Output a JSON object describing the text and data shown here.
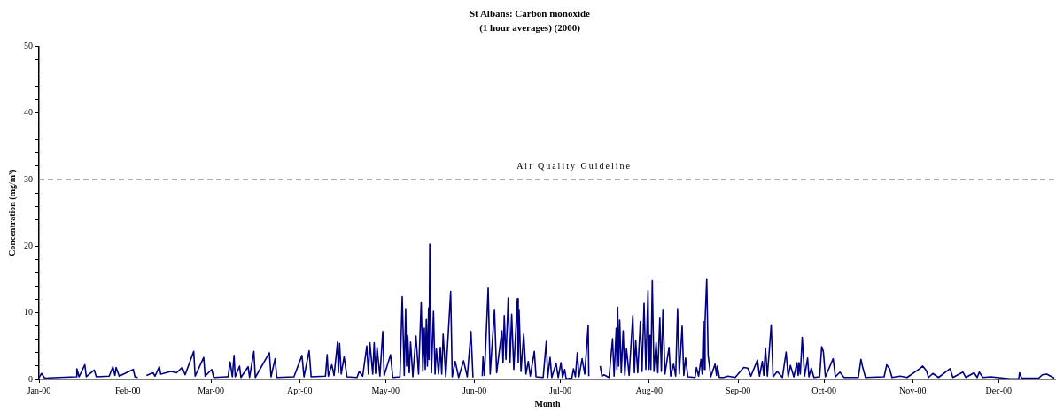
{
  "chart_data": {
    "type": "line",
    "title": "St Albans: Carbon monoxide",
    "subtitle": "(1 hour averages) (2000)",
    "xlabel": "Month",
    "ylabel": "Concentration (mg/m³)",
    "x": [
      "2000-01-01T00:00",
      "2000-01-01T22:00",
      "2000-01-03T00:00",
      "2000-01-08T00:00",
      "2000-01-14T00:00",
      "2000-01-14T05:00",
      "2000-01-15T00:00",
      "2000-01-17T00:00",
      "2000-01-17T12:00",
      "2000-01-20T07:00",
      "2000-01-21T00:00",
      "2000-01-25T12:00",
      "2000-01-26T19:00",
      "2000-01-27T12:00",
      "2000-01-27T22:00",
      "2000-01-29T00:00",
      "2000-02-02T22:00",
      "2000-02-03T12:00",
      "2000-02-04T12:00",
      "2000-02-05T12:00",
      "2000-02-07T12:00",
      "2000-02-09T19:00",
      "2000-02-10T12:00",
      "2000-02-12T00:00",
      "2000-02-12T12:00",
      "2000-02-16T00:00",
      "2000-02-18T00:00",
      "2000-02-20T00:00",
      "2000-02-21T00:00",
      "2000-02-24T00:00",
      "2000-02-24T12:00",
      "2000-02-27T12:00",
      "2000-02-28T00:00",
      "2000-03-01T07:00",
      "2000-03-02T00:00",
      "2000-03-07T00:00",
      "2000-03-07T17:00",
      "2000-03-08T12:00",
      "2000-03-09T02:00",
      "2000-03-09T12:00",
      "2000-03-11T00:00",
      "2000-03-11T12:00",
      "2000-03-14T00:00",
      "2000-03-14T12:00",
      "2000-03-16T00:00",
      "2000-03-16T12:00",
      "2000-03-21T10:00",
      "2000-03-22T00:00",
      "2000-03-23T10:00",
      "2000-03-24T00:00",
      "2000-03-30T00:00",
      "2000-04-01T19:00",
      "2000-04-02T12:00",
      "2000-04-04T07:00",
      "2000-04-05T00:00",
      "2000-04-10T00:00",
      "2000-04-10T14:00",
      "2000-04-11T00:00",
      "2000-04-12T05:00",
      "2000-04-13T00:00",
      "2000-04-14T05:00",
      "2000-04-14T12:00",
      "2000-04-14T22:00",
      "2000-04-15T12:00",
      "2000-04-16T12:00",
      "2000-04-17T12:00",
      "2000-04-21T00:00",
      "2000-04-21T19:00",
      "2000-04-23T00:00",
      "2000-04-24T10:00",
      "2000-04-25T00:00",
      "2000-04-25T12:00",
      "2000-04-26T12:00",
      "2000-04-27T00:00",
      "2000-04-27T12:00",
      "2000-04-28T00:00",
      "2000-04-29T00:00",
      "2000-04-30T00:00",
      "2000-04-30T12:00",
      "2000-05-02T17:00",
      "2000-05-03T12:00",
      "2000-05-06T00:00",
      "2000-05-06T19:00",
      "2000-05-07T12:00",
      "2000-05-08T00:00",
      "2000-05-08T08:00",
      "2000-05-08T17:00",
      "2000-05-09T06:00",
      "2000-05-09T17:00",
      "2000-05-10T12:00",
      "2000-05-11T14:00",
      "2000-05-12T12:00",
      "2000-05-13T10:00",
      "2000-05-14T00:00",
      "2000-05-14T12:00",
      "2000-05-14T20:00",
      "2000-05-15T05:00",
      "2000-05-15T14:00",
      "2000-05-16T00:00",
      "2000-05-16T04:00",
      "2000-05-16T10:00",
      "2000-05-17T00:00",
      "2000-05-17T17:00",
      "2000-05-18T06:00",
      "2000-05-18T17:00",
      "2000-05-19T12:00",
      "2000-05-20T02:00",
      "2000-05-20T14:00",
      "2000-05-21T02:00",
      "2000-05-22T00:00",
      "2000-05-23T17:00",
      "2000-05-24T06:00",
      "2000-05-25T07:00",
      "2000-05-26T12:00",
      "2000-05-28T05:00",
      "2000-05-29T12:00",
      "2000-05-30T19:00",
      "2000-05-31T12:00",
      "2000-06-01T12:00",
      "2000-06-03T18:00",
      "2000-06-04T00:00",
      "2000-06-04T12:00",
      "2000-06-05T19:00",
      "2000-06-06T12:00",
      "2000-06-08T00:00",
      "2000-06-08T18:00",
      "2000-06-10T14:00",
      "2000-06-11T00:00",
      "2000-06-11T10:00",
      "2000-06-12T00:00",
      "2000-06-12T19:00",
      "2000-06-13T10:00",
      "2000-06-14T00:00",
      "2000-06-14T18:00",
      "2000-06-16T00:00",
      "2000-06-16T07:00",
      "2000-06-16T14:00",
      "2000-06-17T06:00",
      "2000-06-18T05:00",
      "2000-06-19T00:00",
      "2000-06-19T19:00",
      "2000-06-20T12:00",
      "2000-06-21T22:00",
      "2000-06-22T12:00",
      "2000-06-25T00:00",
      "2000-06-26T02:00",
      "2000-06-26T14:00",
      "2000-06-27T10:00",
      "2000-06-28T00:00",
      "2000-06-29T12:00",
      "2000-06-30T06:00",
      "2000-07-01T05:00",
      "2000-07-01T18:00",
      "2000-07-02T12:00",
      "2000-07-03T00:00",
      "2000-07-05T00:00",
      "2000-07-05T14:00",
      "2000-07-06T06:00",
      "2000-07-06T22:00",
      "2000-07-07T12:00",
      "2000-07-08T14:00",
      "2000-07-09T12:00",
      "2000-07-10T17:00",
      "2000-07-10T22:00",
      "2000-07-12T00:00",
      "2000-07-14T22:00",
      "2000-07-15T12:00",
      "2000-07-16T05:00",
      "2000-07-18T00:00",
      "2000-07-19T05:00",
      "2000-07-19T18:00",
      "2000-07-20T12:00",
      "2000-07-20T18:00",
      "2000-07-21T00:00",
      "2000-07-21T08:00",
      "2000-07-21T17:00",
      "2000-07-22T06:00",
      "2000-07-22T22:00",
      "2000-07-23T12:00",
      "2000-07-24T02:00",
      "2000-07-25T00:00",
      "2000-07-26T07:00",
      "2000-07-26T20:00",
      "2000-07-27T07:00",
      "2000-07-28T00:00",
      "2000-07-28T22:00",
      "2000-07-29T12:00",
      "2000-07-30T05:00",
      "2000-07-30T20:00",
      "2000-07-31T14:00",
      "2000-07-31T22:00",
      "2000-08-01T07:00",
      "2000-08-01T14:00",
      "2000-08-02T02:00",
      "2000-08-02T16:00",
      "2000-08-03T10:00",
      "2000-08-04T00:00",
      "2000-08-04T17:00",
      "2000-08-05T06:00",
      "2000-08-05T19:00",
      "2000-08-06T12:00",
      "2000-08-07T22:00",
      "2000-08-08T12:00",
      "2000-08-09T12:00",
      "2000-08-10T06:00",
      "2000-08-10T22:00",
      "2000-08-11T12:00",
      "2000-08-12T12:00",
      "2000-08-13T02:00",
      "2000-08-13T17:00",
      "2000-08-14T12:00",
      "2000-08-17T00:00",
      "2000-08-17T12:00",
      "2000-08-18T06:00",
      "2000-08-19T02:00",
      "2000-08-19T12:00",
      "2000-08-19T22:00",
      "2000-08-20T06:00",
      "2000-08-20T12:00",
      "2000-08-21T02:00",
      "2000-08-21T14:00",
      "2000-08-22T12:00",
      "2000-08-24T00:00",
      "2000-08-24T12:00",
      "2000-08-24T19:00",
      "2000-08-25T12:00",
      "2000-08-27T00:00",
      "2000-08-28T12:00",
      "2000-08-31T00:00",
      "2000-09-03T00:00",
      "2000-09-04T10:00",
      "2000-09-05T12:00",
      "2000-09-07T19:00",
      "2000-09-08T12:00",
      "2000-09-09T12:00",
      "2000-09-10T00:00",
      "2000-09-10T14:00",
      "2000-09-11T06:00",
      "2000-09-12T14:00",
      "2000-09-13T06:00",
      "2000-09-14T17:00",
      "2000-09-16T12:00",
      "2000-09-17T19:00",
      "2000-09-18T12:00",
      "2000-09-19T07:00",
      "2000-09-20T12:00",
      "2000-09-21T14:00",
      "2000-09-22T00:00",
      "2000-09-22T07:00",
      "2000-09-22T18:00",
      "2000-09-23T10:00",
      "2000-09-24T06:00",
      "2000-09-25T07:00",
      "2000-09-25T18:00",
      "2000-09-26T14:00",
      "2000-09-27T12:00",
      "2000-09-29T12:00",
      "2000-09-30T05:00",
      "2000-09-30T19:00",
      "2000-10-01T12:00",
      "2000-10-04T05:00",
      "2000-10-05T00:00",
      "2000-10-06T14:00",
      "2000-10-08T00:00",
      "2000-10-13T00:00",
      "2000-10-13T22:00",
      "2000-10-14T10:00",
      "2000-10-15T12:00",
      "2000-10-22T00:00",
      "2000-10-22T22:00",
      "2000-10-23T22:00",
      "2000-10-24T18:00",
      "2000-10-27T14:00",
      "2000-10-30T00:00",
      "2000-11-03T10:00",
      "2000-11-04T12:00",
      "2000-11-05T19:00",
      "2000-11-06T12:00",
      "2000-11-08T00:00",
      "2000-11-10T00:00",
      "2000-11-14T00:00",
      "2000-11-15T00:00",
      "2000-11-18T12:00",
      "2000-11-19T12:00",
      "2000-11-22T10:00",
      "2000-11-23T12:00",
      "2000-11-24T05:00",
      "2000-11-25T12:00",
      "2000-11-28T05:00",
      "2000-12-05T00:00",
      "2000-12-08T00:00",
      "2000-12-08T07:00",
      "2000-12-09T00:00",
      "2000-12-15T00:00",
      "2000-12-16T05:00",
      "2000-12-17T19:00",
      "2000-12-20T10:00"
    ],
    "series": [
      {
        "color": "#000080",
        "values": [
          0.3,
          0.9,
          0.2,
          0.3,
          0.4,
          1.6,
          0.4,
          2.2,
          0.4,
          1.4,
          0.4,
          0.5,
          1.9,
          0.6,
          1.8,
          0.5,
          1.5,
          0.4,
          0.3,
          null,
          0.6,
          1.0,
          0.5,
          1.9,
          0.8,
          1.2,
          1.0,
          1.8,
          0.7,
          4.2,
          0.5,
          3.3,
          0.5,
          1.5,
          0.3,
          0.4,
          2.6,
          0.4,
          3.6,
          0.4,
          2.0,
          0.3,
          1.9,
          0.3,
          4.2,
          0.3,
          4.0,
          0.4,
          3.1,
          0.3,
          0.4,
          3.6,
          0.4,
          4.3,
          0.4,
          0.5,
          3.7,
          0.5,
          2.2,
          0.6,
          5.6,
          1.0,
          5.4,
          0.8,
          3.4,
          0.4,
          0.3,
          1.2,
          0.5,
          5.0,
          0.8,
          5.5,
          0.8,
          5.5,
          0.9,
          4.8,
          0.5,
          7.2,
          0.6,
          3.7,
          0.3,
          0.4,
          12.4,
          0.6,
          10.6,
          2.0,
          6.6,
          1.0,
          5.6,
          0.4,
          6.5,
          0.8,
          11.6,
          1.2,
          7.7,
          1.5,
          9.0,
          2.0,
          10.7,
          3.0,
          20.3,
          1.0,
          10.2,
          0.8,
          4.6,
          0.8,
          4.8,
          0.8,
          6.8,
          0.4,
          13.2,
          0.4,
          2.7,
          0.3,
          2.8,
          0.4,
          7.2,
          0.3,
          null,
          0.5,
          3.4,
          0.6,
          13.7,
          0.8,
          10.5,
          1.0,
          7.3,
          2.5,
          9.6,
          3.0,
          12.2,
          2.5,
          9.8,
          1.5,
          12.1,
          2.5,
          10.5,
          1.2,
          6.8,
          0.8,
          2.7,
          0.5,
          4.2,
          0.4,
          0.3,
          5.7,
          0.3,
          3.3,
          0.3,
          2.4,
          0.3,
          2.5,
          0.3,
          1.5,
          0.1,
          0.2,
          1.6,
          0.4,
          4.0,
          0.4,
          3.1,
          0.8,
          8.1,
          0.5,
          null,
          2.0,
          0.5,
          0.7,
          0.3,
          6.1,
          0.5,
          7.7,
          1.5,
          10.8,
          2.0,
          8.9,
          1.0,
          7.3,
          0.6,
          4.6,
          0.6,
          9.6,
          1.0,
          5.9,
          1.0,
          8.7,
          1.2,
          11.4,
          1.5,
          13.3,
          1.5,
          6.6,
          1.5,
          14.8,
          1.2,
          5.5,
          1.0,
          9.2,
          1.2,
          10.5,
          0.8,
          4.8,
          0.5,
          2.3,
          0.5,
          10.6,
          0.8,
          8.0,
          0.6,
          3.2,
          0.4,
          0.3,
          1.8,
          0.5,
          3.0,
          0.8,
          8.7,
          1.5,
          8.7,
          15.1,
          3.6,
          0.4,
          2.3,
          0.6,
          2.0,
          0.3,
          0.3,
          0.5,
          0.3,
          1.8,
          1.7,
          0.5,
          2.9,
          0.5,
          2.7,
          0.6,
          4.7,
          0.5,
          8.2,
          0.4,
          1.2,
          0.3,
          4.1,
          0.4,
          2.1,
          0.4,
          2.5,
          0.6,
          2.5,
          0.8,
          6.3,
          0.5,
          3.2,
          0.4,
          1.7,
          0.3,
          0.4,
          4.9,
          4.2,
          0.4,
          3.1,
          0.4,
          1.1,
          0.3,
          0.3,
          3.0,
          2.0,
          0.3,
          0.4,
          2.2,
          1.6,
          0.3,
          0.5,
          0.3,
          1.6,
          2.0,
          1.3,
          0.3,
          0.9,
          0.3,
          1.6,
          0.3,
          1.1,
          0.3,
          1.0,
          0.3,
          1.1,
          0.3,
          0.4,
          0.1,
          0.1,
          1.0,
          0.2,
          0.2,
          0.7,
          0.8,
          0.2
        ]
      }
    ],
    "xlim": [
      "2000-01-01",
      "2000-12-21"
    ],
    "xticks": [
      {
        "value": "2000-01-01",
        "label": "Jan-00"
      },
      {
        "value": "2000-02-01",
        "label": "Feb-00"
      },
      {
        "value": "2000-03-01",
        "label": "Mar-00"
      },
      {
        "value": "2000-04-01",
        "label": "Apr-00"
      },
      {
        "value": "2000-05-01",
        "label": "May-00"
      },
      {
        "value": "2000-06-01",
        "label": "Jun-00"
      },
      {
        "value": "2000-07-01",
        "label": "Jul-00"
      },
      {
        "value": "2000-08-01",
        "label": "Aug-00"
      },
      {
        "value": "2000-09-01",
        "label": "Sep-00"
      },
      {
        "value": "2000-10-01",
        "label": "Oct-00"
      },
      {
        "value": "2000-11-01",
        "label": "Nov-00"
      },
      {
        "value": "2000-12-01",
        "label": "Dec-00"
      }
    ],
    "ylim": [
      0,
      50
    ],
    "yticks": [
      0,
      {
        "value": 2,
        "label": null
      },
      {
        "value": 4,
        "label": null
      },
      {
        "value": 6,
        "label": null
      },
      {
        "value": 8,
        "label": null
      },
      10,
      {
        "value": 12,
        "label": null
      },
      {
        "value": 14,
        "label": null
      },
      {
        "value": 16,
        "label": null
      },
      {
        "value": 18,
        "label": null
      },
      20,
      {
        "value": 22,
        "label": null
      },
      {
        "value": 24,
        "label": null
      },
      {
        "value": 26,
        "label": null
      },
      {
        "value": 28,
        "label": null
      },
      30,
      {
        "value": 32,
        "label": null
      },
      {
        "value": 34,
        "label": null
      },
      {
        "value": 36,
        "label": null
      },
      {
        "value": 38,
        "label": null
      },
      40,
      {
        "value": 42,
        "label": null
      },
      {
        "value": 44,
        "label": null
      },
      {
        "value": 46,
        "label": null
      },
      {
        "value": 48,
        "label": null
      },
      50
    ],
    "ref_lines": [
      {
        "axis": "y",
        "value": 30,
        "label": "Air Quality Guideline",
        "color": "#595959",
        "line_style": "dashed"
      }
    ],
    "marker": "none",
    "line_style": "solid"
  }
}
